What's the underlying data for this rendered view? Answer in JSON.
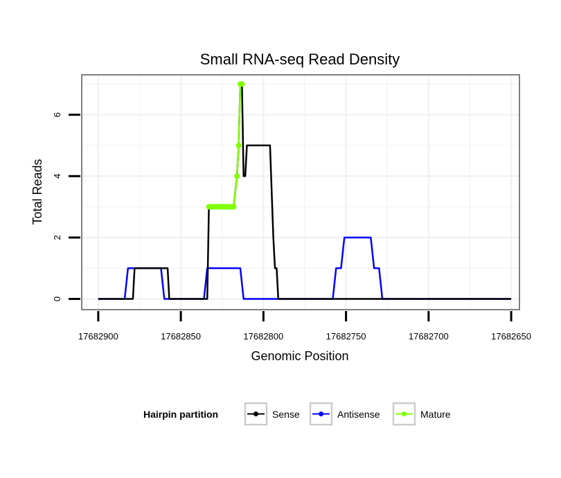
{
  "colors": {
    "background": "#ffffff",
    "panel_border": "#7f7f7f",
    "grid": "#f2f2f2",
    "legend_key_border": "#cccccc"
  },
  "chart_data": {
    "type": "line",
    "title": "Small RNA-seq Read Density",
    "xlabel": "Genomic Position",
    "ylabel": "Total Reads",
    "x_reversed": true,
    "xlim": [
      17682910,
      17682645
    ],
    "ylim": [
      -0.35,
      7.3
    ],
    "x_ticks": [
      17682900,
      17682850,
      17682800,
      17682750,
      17682700,
      17682650
    ],
    "x_tick_labels": [
      "17682900",
      "17682850",
      "17682800",
      "17682750",
      "17682700",
      "17682650"
    ],
    "y_ticks": [
      0,
      2,
      4,
      6
    ],
    "y_tick_labels": [
      "0",
      "2",
      "4",
      "6"
    ],
    "legend": {
      "title": "Hairpin partition",
      "position": "bottom",
      "entries": [
        "Sense",
        "Antisense",
        "Mature"
      ]
    },
    "series": [
      {
        "name": "Antisense",
        "color": "#0000ff",
        "markers": false,
        "x": [
          17682900,
          17682884,
          17682882,
          17682862,
          17682860,
          17682836,
          17682834,
          17682814,
          17682812,
          17682758,
          17682756,
          17682753,
          17682751,
          17682735,
          17682733,
          17682730,
          17682728,
          17682650
        ],
        "y": [
          0,
          0,
          1,
          1,
          0,
          0,
          1,
          1,
          0,
          0,
          1,
          1,
          2,
          2,
          1,
          1,
          0,
          0
        ]
      },
      {
        "name": "Sense",
        "color": "#000000",
        "markers": false,
        "x": [
          17682900,
          17682879,
          17682878,
          17682858,
          17682857,
          17682834,
          17682833,
          17682818,
          17682816,
          17682815,
          17682814,
          17682813,
          17682812,
          17682811,
          17682810,
          17682809,
          17682808,
          17682796,
          17682795,
          17682794,
          17682793,
          17682792,
          17682791,
          17682650
        ],
        "y": [
          0,
          0,
          1,
          1,
          0,
          0,
          3,
          3,
          4,
          5,
          7,
          7,
          4,
          4,
          5,
          5,
          5,
          5,
          3.5,
          2,
          1,
          1,
          0,
          0
        ]
      },
      {
        "name": "Mature",
        "color": "#7fff00",
        "markers": true,
        "x": [
          17682833,
          17682832,
          17682831,
          17682830,
          17682829,
          17682828,
          17682827,
          17682826,
          17682825,
          17682824,
          17682823,
          17682822,
          17682821,
          17682820,
          17682819,
          17682818,
          17682816,
          17682815,
          17682814,
          17682813
        ],
        "y": [
          3,
          3,
          3,
          3,
          3,
          3,
          3,
          3,
          3,
          3,
          3,
          3,
          3,
          3,
          3,
          3,
          4,
          5,
          7,
          7
        ]
      }
    ]
  }
}
